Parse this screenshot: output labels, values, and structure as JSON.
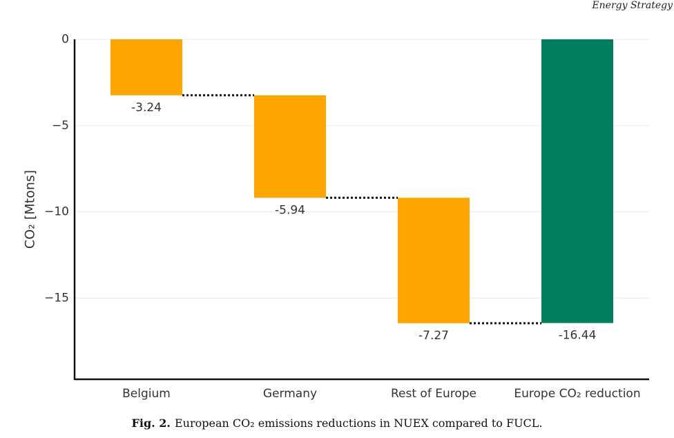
{
  "header": "Energy Strategy",
  "caption": {
    "label": "Fig. 2.",
    "text": "European CO₂ emissions reductions in NUEX compared to FUCL."
  },
  "chart_data": {
    "type": "waterfall",
    "y_label": "CO₂ [Mtons]",
    "categories": [
      "Belgium",
      "Germany",
      "Rest of Europe",
      "Europe CO₂ reduction"
    ],
    "values": [
      -3.24,
      -5.94,
      -7.27,
      -16.44
    ],
    "measures": [
      "relative",
      "relative",
      "relative",
      "total"
    ],
    "relative_color": "#ffa500",
    "total_color": "#007f5f",
    "ylim": [
      -19.7,
      0
    ],
    "yticks": [
      {
        "value": -15,
        "label": "−15"
      },
      {
        "value": -10,
        "label": "−10"
      },
      {
        "value": -5,
        "label": "−5"
      },
      0
    ],
    "grid": true
  }
}
